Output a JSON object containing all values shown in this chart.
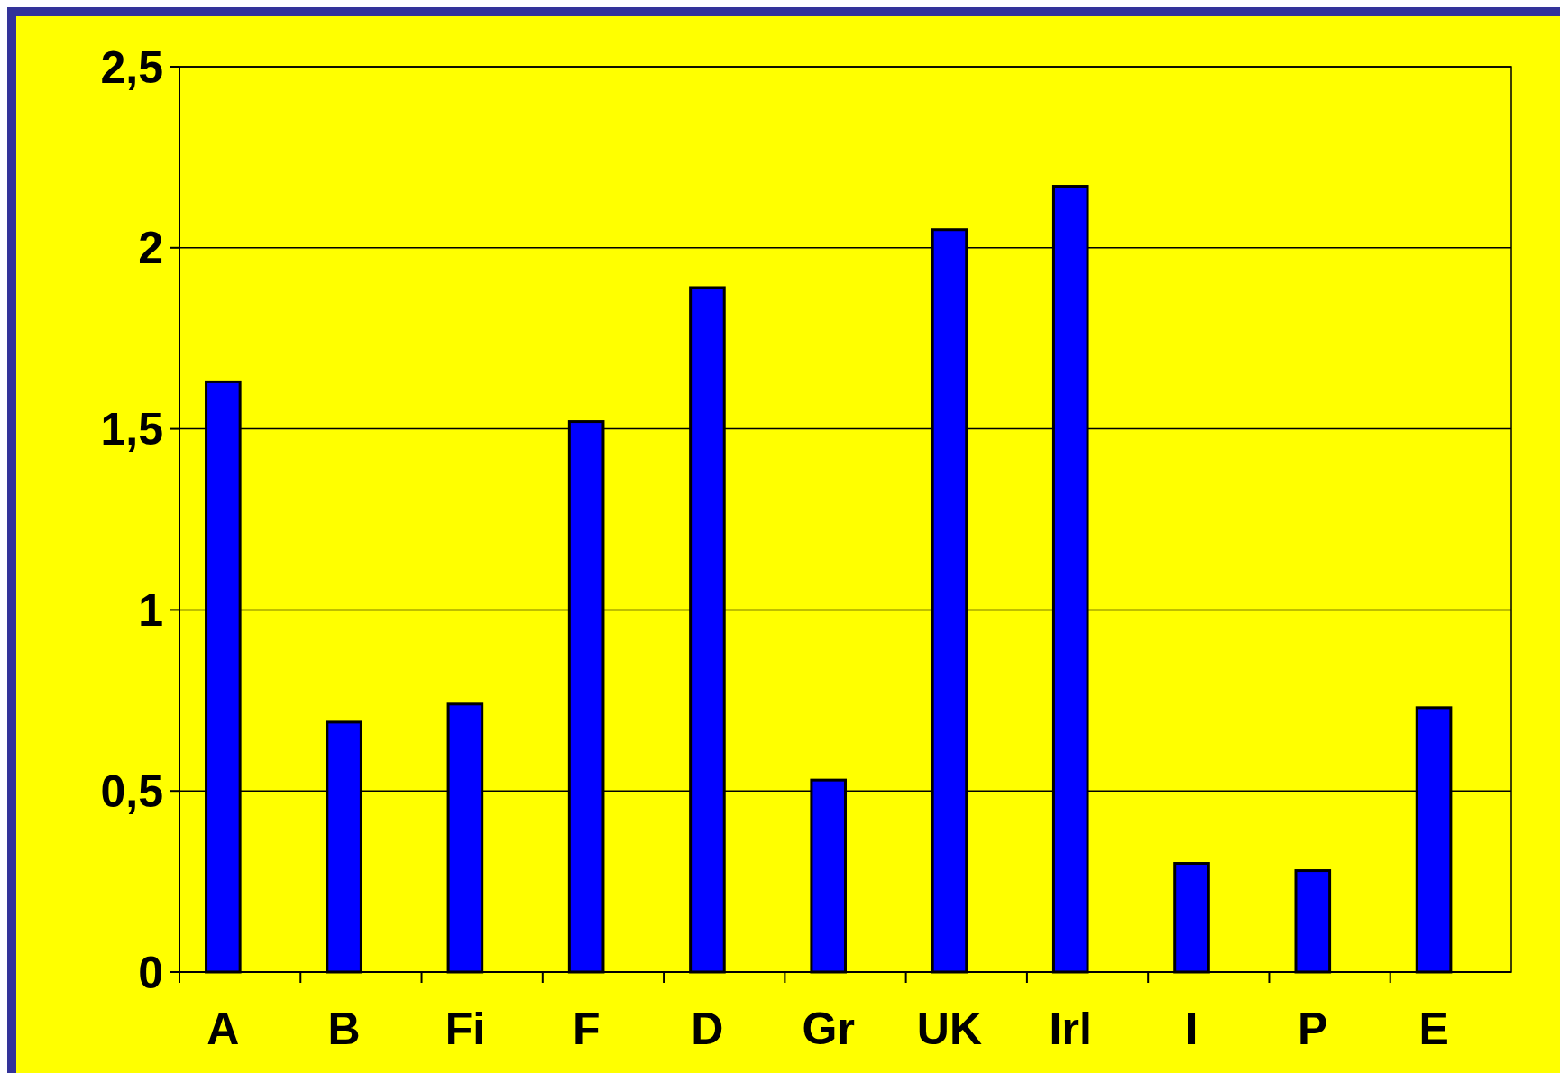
{
  "chart_data": {
    "type": "bar",
    "categories": [
      "A",
      "B",
      "Fi",
      "F",
      "D",
      "Gr",
      "UK",
      "Irl",
      "I",
      "P",
      "E"
    ],
    "values": [
      1.63,
      0.69,
      0.74,
      1.52,
      1.89,
      0.53,
      2.05,
      2.17,
      0.3,
      0.28,
      0.73
    ],
    "color": "#0000ff",
    "ylim": [
      0,
      2.5
    ],
    "yticks": [
      0,
      {
        "value": 0.5,
        "label": "0,5"
      },
      1,
      {
        "value": 1.5,
        "label": "1,5"
      },
      2,
      {
        "value": 2.5,
        "label": "2,5"
      }
    ],
    "grid": "y"
  }
}
